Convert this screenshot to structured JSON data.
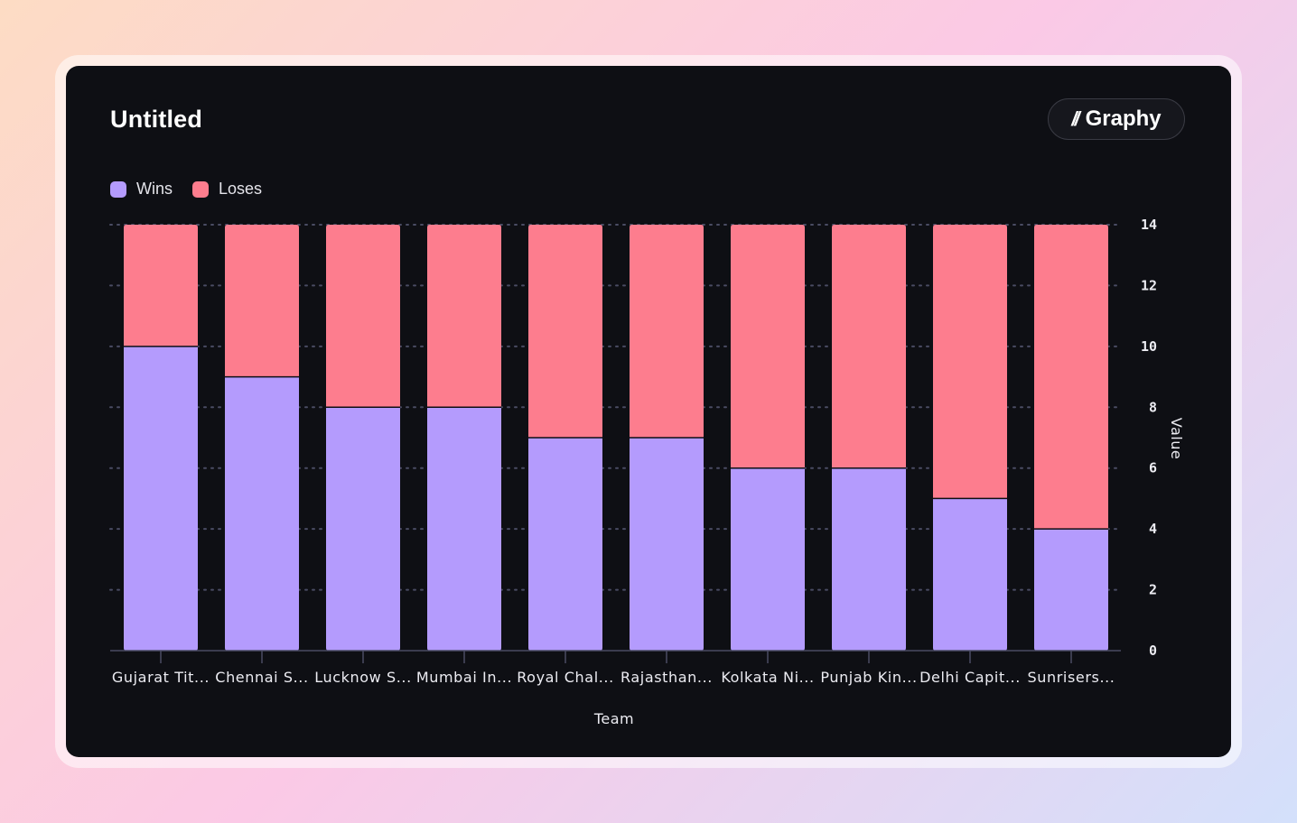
{
  "title": "Untitled",
  "brand": {
    "mark": "//",
    "name": "Graphy"
  },
  "colors": {
    "wins": "#b49bfd",
    "loses": "#fd7d8e",
    "background": "#0e0f14"
  },
  "chart_data": {
    "type": "bar",
    "stacked": true,
    "title": "Untitled",
    "xlabel": "Team",
    "ylabel": "Value",
    "ylim": [
      0,
      14
    ],
    "yticks": [
      0,
      2,
      4,
      6,
      8,
      10,
      12,
      14
    ],
    "y_axis_side": "right",
    "grid": true,
    "legend": "top-left",
    "categories": [
      "Gujarat Tit...",
      "Chennai S...",
      "Lucknow S...",
      "Mumbai In...",
      "Royal Chal...",
      "Rajasthan...",
      "Kolkata Ni...",
      "Punjab Kin...",
      "Delhi Capit...",
      "Sunrisers..."
    ],
    "series": [
      {
        "name": "Wins",
        "color": "#b49bfd",
        "values": [
          10,
          9,
          8,
          8,
          7,
          7,
          6,
          6,
          5,
          4
        ]
      },
      {
        "name": "Loses",
        "color": "#fd7d8e",
        "values": [
          4,
          5,
          6,
          6,
          7,
          7,
          8,
          8,
          9,
          10
        ]
      }
    ]
  }
}
